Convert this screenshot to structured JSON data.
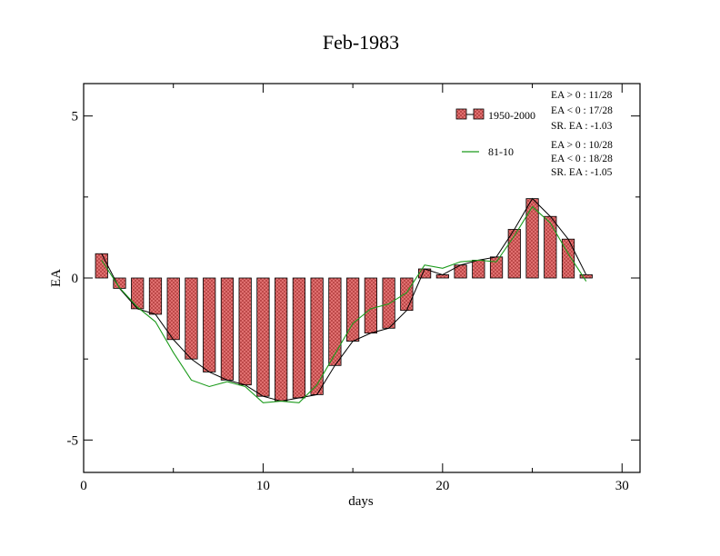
{
  "chart_data": {
    "type": "bar",
    "title": "Feb-1983",
    "xlabel": "days",
    "ylabel": "EA",
    "xlim": [
      0,
      31
    ],
    "ylim": [
      -6,
      6
    ],
    "x_ticks": [
      0,
      10,
      20,
      30
    ],
    "y_ticks": [
      -5,
      0,
      5
    ],
    "x_tick_labels": [
      "0",
      "10",
      "20",
      "30"
    ],
    "y_tick_labels": [
      "-5",
      "0",
      "5"
    ],
    "grid": false,
    "legend_position": "top-right",
    "colors": {
      "bar_fill": "#e07070",
      "bar_hatch": "#8b1a1a",
      "bar_line": "#000000",
      "line_81_10": "#1a9a1a"
    },
    "days": [
      1,
      2,
      3,
      4,
      5,
      6,
      7,
      8,
      9,
      10,
      11,
      12,
      13,
      14,
      15,
      16,
      17,
      18,
      19,
      20,
      21,
      22,
      23,
      24,
      25,
      26,
      27,
      28
    ],
    "series": [
      {
        "name": "1950-2000",
        "type": "bar+line",
        "values": [
          0.75,
          -0.32,
          -0.95,
          -1.12,
          -1.9,
          -2.5,
          -2.9,
          -3.15,
          -3.3,
          -3.65,
          -3.8,
          -3.7,
          -3.6,
          -2.7,
          -1.95,
          -1.7,
          -1.55,
          -1.0,
          0.28,
          0.1,
          0.4,
          0.55,
          0.65,
          1.5,
          2.45,
          1.9,
          1.2,
          0.1
        ],
        "stats": [
          "EA > 0 : 11/28",
          "EA < 0 : 17/28",
          "SR. EA : -1.03"
        ]
      },
      {
        "name": "81-10",
        "type": "line",
        "values": [
          0.55,
          -0.3,
          -0.9,
          -1.35,
          -2.3,
          -3.15,
          -3.35,
          -3.2,
          -3.35,
          -3.85,
          -3.8,
          -3.85,
          -3.3,
          -2.35,
          -1.4,
          -0.95,
          -0.8,
          -0.45,
          0.4,
          0.3,
          0.5,
          0.55,
          0.5,
          1.3,
          2.2,
          1.7,
          0.75,
          -0.1
        ],
        "stats": [
          "EA > 0 : 10/28",
          "EA < 0 : 18/28",
          "SR. EA : -1.05"
        ]
      }
    ]
  }
}
